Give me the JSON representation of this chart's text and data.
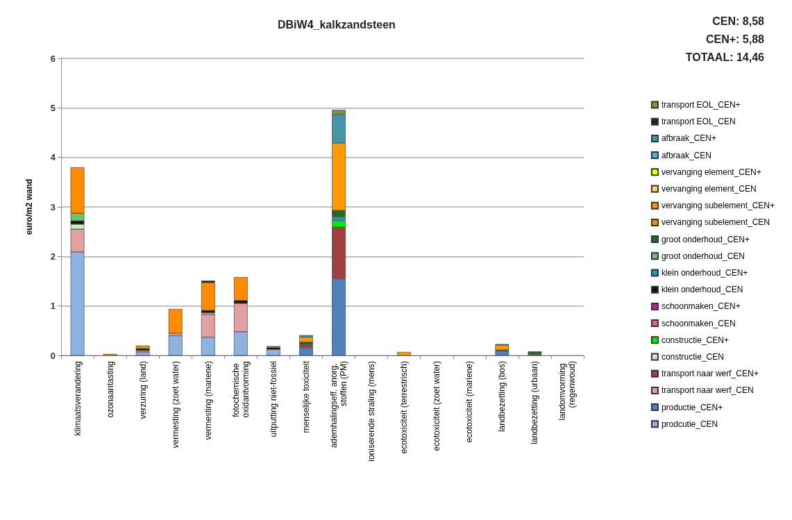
{
  "chart_data": {
    "type": "bar",
    "stacked": true,
    "title": "DBiW4_kalkzandsteen",
    "ylabel": "euro/m2 wand",
    "annotations": [
      "CEN: 8,58",
      "CEN+: 5,88",
      "TOTAAL: 14,46"
    ],
    "categories": [
      "klimaatsverandering",
      "ozonaantasting",
      "verzuring (land)",
      "vermesting (zoet water)",
      "vermesting (mariene)",
      "fotochemische oxidantvorming",
      "uitputting niet-fossiel",
      "menselijke toxiciteit",
      "ademhalingseff. anorg. stoffen (PM)",
      "ioniserende straling (mens)",
      "ecotoxiciteit (terrestrisch)",
      "ecotoxiciteit (zoet water)",
      "ecotoxiciteit (mariene)",
      "landbezetting (bos)",
      "landbezetting (urbaan)",
      "landomvorming (regenwoud)"
    ],
    "ylim": [
      0,
      6
    ],
    "yticks": [
      0,
      1,
      2,
      3,
      4,
      5,
      6
    ],
    "grid": "y",
    "legend": "right",
    "series": [
      {
        "name": "prodcutie_CEN",
        "color": "#8fb3e0",
        "values": [
          2.09,
          null,
          0.07,
          0.4,
          0.37,
          0.48,
          0.12,
          null,
          null,
          null,
          null,
          null,
          null,
          null,
          null,
          null
        ]
      },
      {
        "name": "productie_CEN+",
        "color": "#4f81bd",
        "values": [
          null,
          null,
          null,
          null,
          null,
          null,
          null,
          0.16,
          1.55,
          null,
          null,
          null,
          null,
          0.09,
          0.02,
          null
        ]
      },
      {
        "name": "transport naar werf_CEN",
        "color": "#e3a0a0",
        "values": [
          0.46,
          null,
          0.03,
          0.05,
          0.46,
          0.57,
          null,
          null,
          null,
          null,
          null,
          null,
          null,
          null,
          null,
          null
        ]
      },
      {
        "name": "transport naar werf_CEN+",
        "color": "#a04040",
        "values": [
          null,
          null,
          null,
          null,
          null,
          null,
          null,
          0.06,
          1.04,
          null,
          null,
          null,
          null,
          null,
          null,
          null
        ]
      },
      {
        "name": "constructie_CEN",
        "color": "#c8f0c0",
        "values": [
          0.1,
          null,
          null,
          null,
          0.03,
          null,
          null,
          null,
          null,
          null,
          null,
          null,
          null,
          null,
          null,
          null
        ]
      },
      {
        "name": "constructie_CEN+",
        "color": "#00ee00",
        "values": [
          null,
          null,
          null,
          null,
          null,
          null,
          null,
          null,
          0.13,
          null,
          null,
          null,
          null,
          null,
          null,
          null
        ]
      },
      {
        "name": "schoonmaken_CEN",
        "color": "#e06090",
        "values": [
          null,
          null,
          null,
          null,
          null,
          null,
          null,
          null,
          null,
          null,
          null,
          null,
          null,
          null,
          null,
          null
        ]
      },
      {
        "name": "schoonmaken_CEN+",
        "color": "#c0208c",
        "values": [
          null,
          null,
          null,
          null,
          null,
          null,
          null,
          null,
          null,
          null,
          null,
          null,
          null,
          null,
          null,
          null
        ]
      },
      {
        "name": "klein onderhoud_CEN",
        "color": "#111111",
        "values": [
          0.07,
          null,
          0.04,
          null,
          0.05,
          0.06,
          0.04,
          null,
          null,
          null,
          null,
          null,
          null,
          null,
          null,
          null
        ]
      },
      {
        "name": "klein onderhoud_CEN+",
        "color": "#1f9aa8",
        "values": [
          null,
          null,
          null,
          null,
          null,
          null,
          null,
          null,
          0.08,
          null,
          null,
          null,
          null,
          null,
          null,
          null
        ]
      },
      {
        "name": "groot onderhoud_CEN",
        "color": "#70c070",
        "values": [
          0.15,
          null,
          null,
          null,
          null,
          null,
          null,
          null,
          null,
          null,
          null,
          null,
          null,
          null,
          null,
          null
        ]
      },
      {
        "name": "groot onderhoud_CEN+",
        "color": "#1e6b2a",
        "values": [
          null,
          null,
          null,
          null,
          null,
          null,
          null,
          0.05,
          0.13,
          null,
          null,
          null,
          null,
          0.02,
          0.06,
          null
        ]
      },
      {
        "name": "vervanging subelement_CEN",
        "color": "#ff8c00",
        "values": [
          0.93,
          0.03,
          0.06,
          0.49,
          0.56,
          0.47,
          0.03,
          null,
          null,
          null,
          null,
          null,
          null,
          null,
          null,
          null
        ]
      },
      {
        "name": "vervanging subelement_CEN+",
        "color": "#ff9900",
        "values": [
          null,
          null,
          null,
          null,
          null,
          null,
          null,
          0.1,
          1.36,
          null,
          0.07,
          null,
          null,
          0.1,
          null,
          null
        ]
      },
      {
        "name": "vervanging element_CEN",
        "color": "#ffd080",
        "values": [
          null,
          null,
          null,
          null,
          null,
          null,
          null,
          null,
          null,
          null,
          null,
          null,
          null,
          null,
          null,
          null
        ]
      },
      {
        "name": "vervanging element_CEN+",
        "color": "#ffff00",
        "values": [
          null,
          null,
          null,
          null,
          null,
          null,
          null,
          null,
          null,
          null,
          null,
          null,
          null,
          null,
          null,
          null
        ]
      },
      {
        "name": "afbraak_CEN",
        "color": "#5aaed0",
        "values": [
          null,
          null,
          null,
          null,
          null,
          null,
          null,
          null,
          null,
          null,
          null,
          null,
          null,
          null,
          null,
          null
        ]
      },
      {
        "name": "afbraak_CEN+",
        "color": "#4395a8",
        "values": [
          null,
          null,
          null,
          null,
          null,
          null,
          null,
          0.04,
          0.58,
          null,
          null,
          null,
          null,
          0.02,
          null,
          null
        ]
      },
      {
        "name": "transport EOL_CEN",
        "color": "#222222",
        "values": [
          null,
          null,
          null,
          null,
          0.04,
          null,
          null,
          null,
          null,
          null,
          null,
          null,
          null,
          null,
          null,
          null
        ]
      },
      {
        "name": "transport EOL_CEN+",
        "color": "#7a9a3a",
        "values": [
          null,
          null,
          null,
          null,
          null,
          null,
          null,
          null,
          0.09,
          null,
          null,
          null,
          null,
          null,
          null,
          null
        ]
      }
    ]
  }
}
